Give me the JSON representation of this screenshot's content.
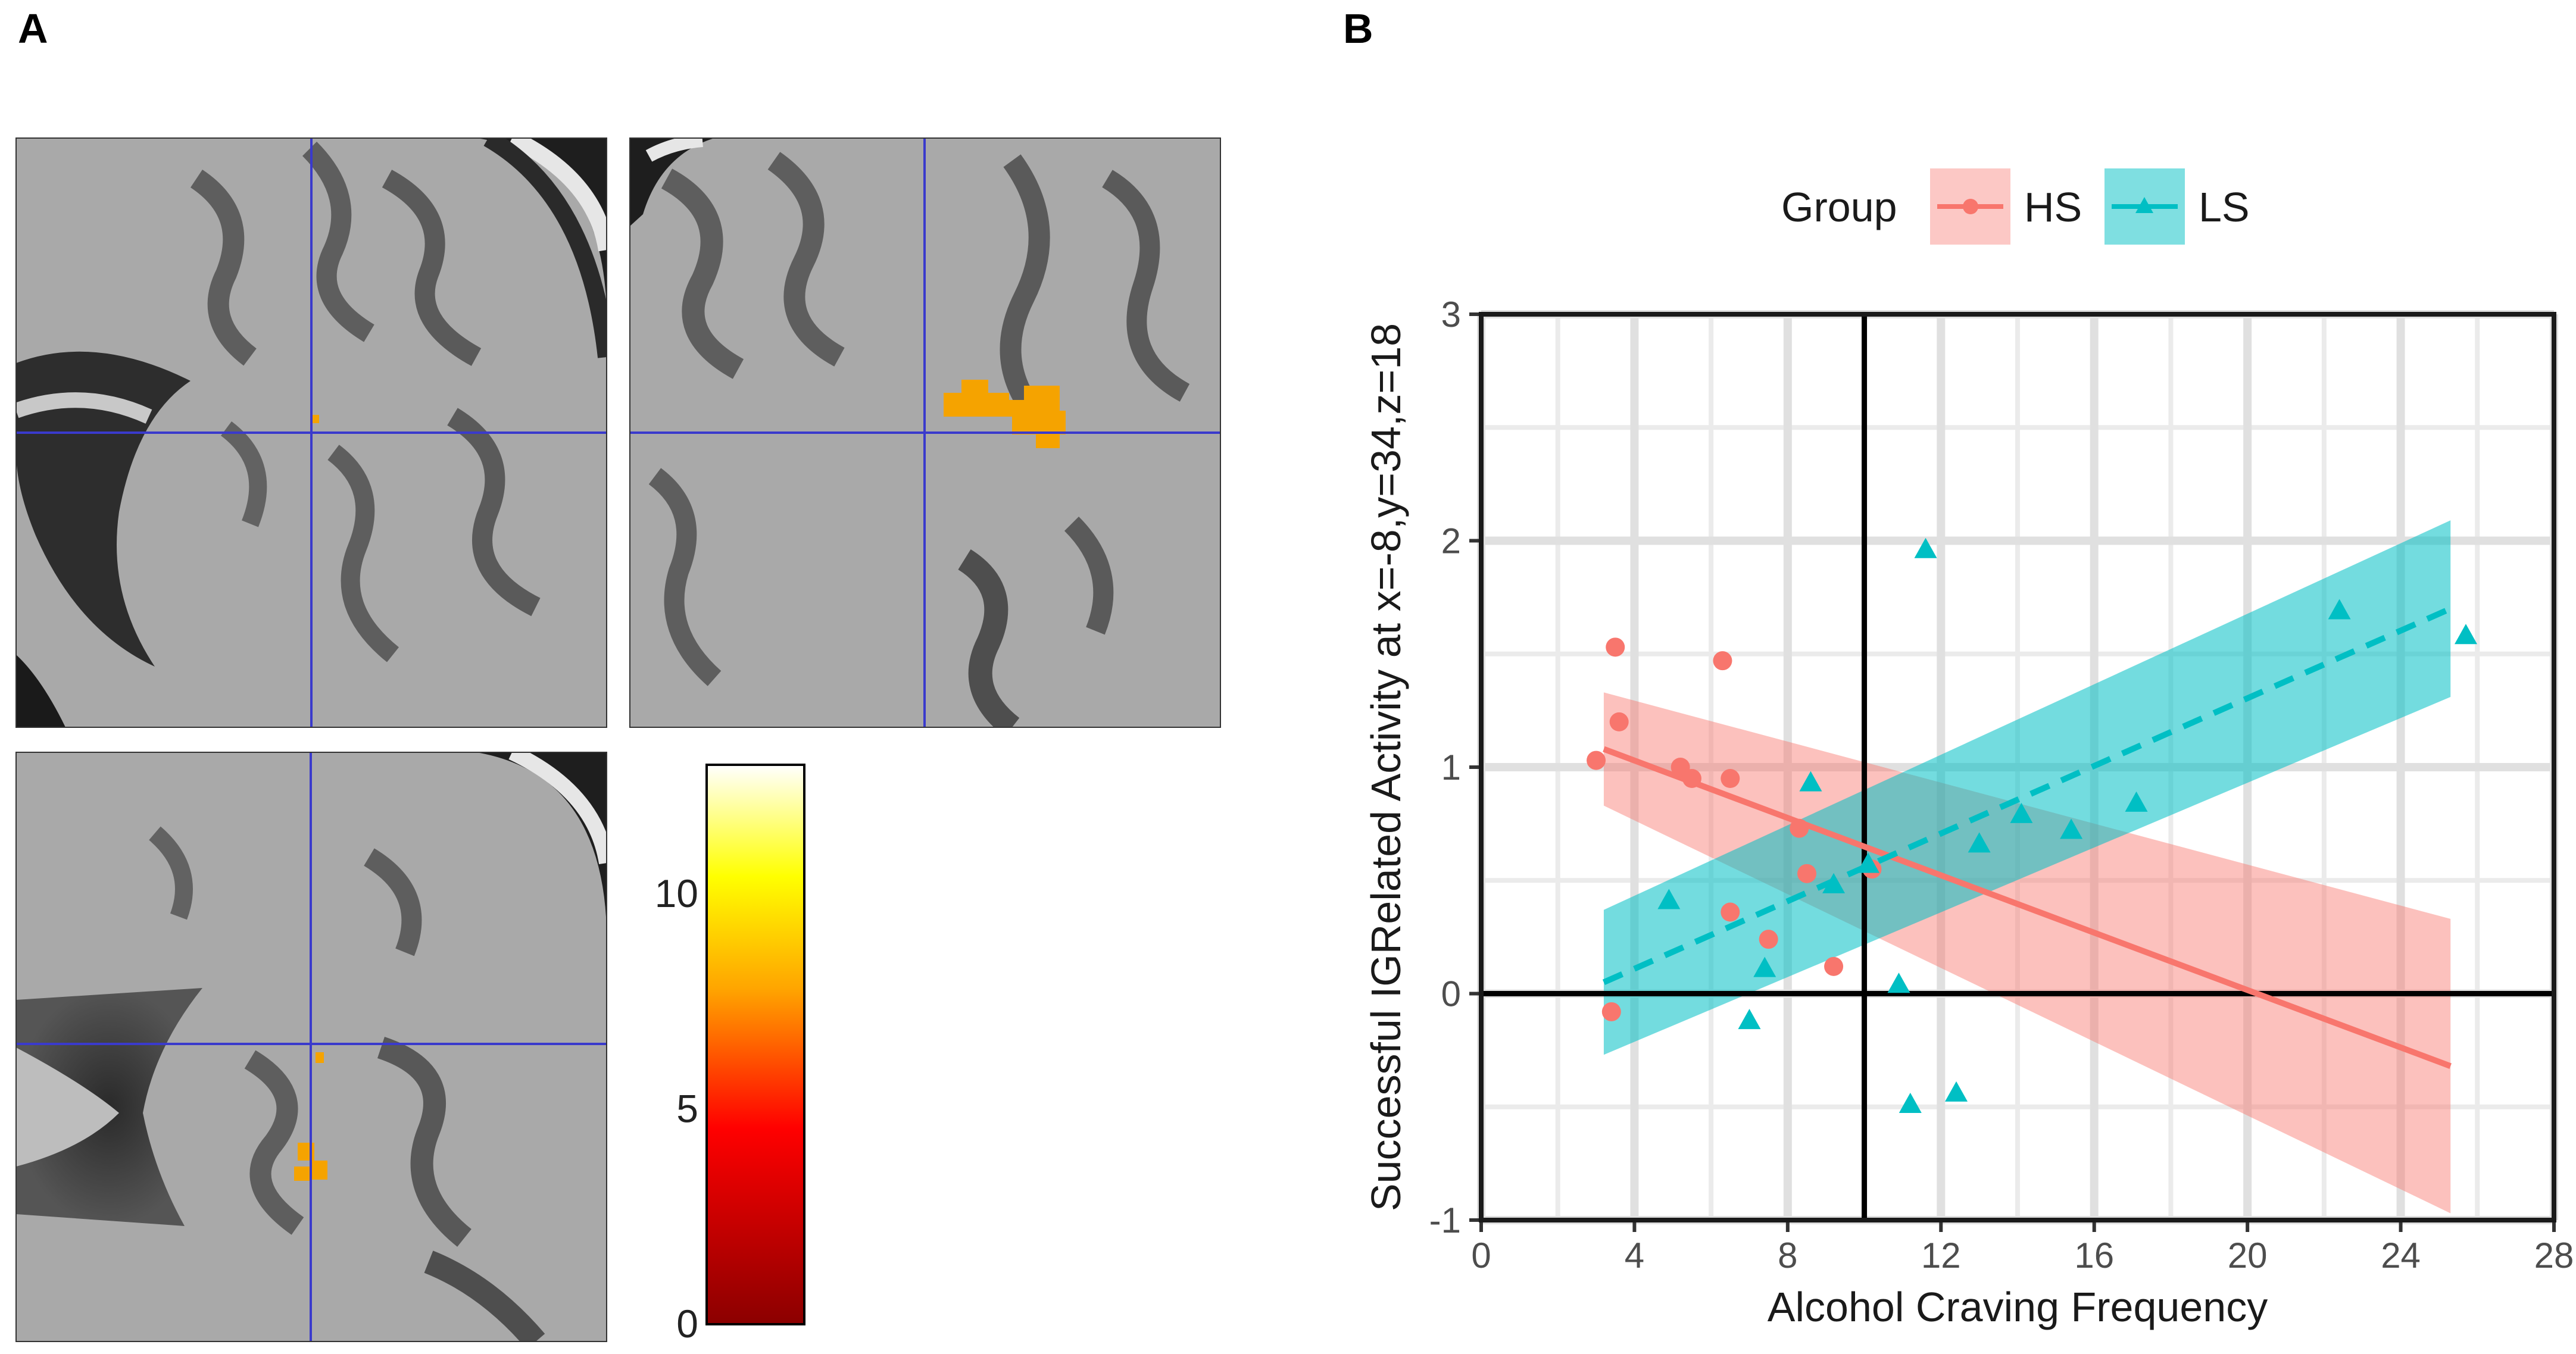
{
  "panel_a": {
    "letter": "A",
    "colorbar": {
      "ticks": [
        {
          "label": "10",
          "value": 10
        },
        {
          "label": "5",
          "value": 5
        },
        {
          "label": "0",
          "value": 0
        }
      ],
      "max": 13,
      "colors": {
        "low": "#8b0000",
        "mid": "#ff0000",
        "upper": "#ffa500",
        "high": "#ffff00",
        "top": "#ffffff"
      }
    },
    "crosshair_color": "#3a3acc",
    "activation_color": "#f5a300"
  },
  "panel_b": {
    "letter": "B",
    "legend": {
      "title": "Group",
      "entries": [
        {
          "label": "HS",
          "color": "#f8766d",
          "marker": "circle"
        },
        {
          "label": "LS",
          "color": "#00bfc4",
          "marker": "triangle"
        }
      ]
    }
  },
  "chart_data": {
    "type": "scatter",
    "xlabel": "Alcohol Craving Frequency",
    "ylabel": "Successful IGRelated Activity at x=-8,y=34,z=18",
    "xlim": [
      0,
      28
    ],
    "ylim": [
      -1,
      3
    ],
    "xticks": [
      0,
      4,
      8,
      12,
      16,
      20,
      24,
      28
    ],
    "yticks": [
      -1,
      0,
      1,
      2,
      3
    ],
    "reference_lines": {
      "x": 10,
      "y": 0
    },
    "grid": true,
    "series": [
      {
        "name": "HS",
        "color": "#f8766d",
        "marker": "circle",
        "points": [
          {
            "x": 3.0,
            "y": 1.03
          },
          {
            "x": 3.5,
            "y": 1.53
          },
          {
            "x": 3.6,
            "y": 1.2
          },
          {
            "x": 5.2,
            "y": 1.0
          },
          {
            "x": 5.5,
            "y": 0.95
          },
          {
            "x": 6.3,
            "y": 1.47
          },
          {
            "x": 6.5,
            "y": 0.95
          },
          {
            "x": 6.5,
            "y": 0.36
          },
          {
            "x": 7.5,
            "y": 0.24
          },
          {
            "x": 8.3,
            "y": 0.73
          },
          {
            "x": 8.5,
            "y": 0.53
          },
          {
            "x": 9.2,
            "y": 0.12
          },
          {
            "x": 10.2,
            "y": 0.55
          },
          {
            "x": 3.4,
            "y": -0.08
          }
        ],
        "fit": {
          "x": [
            3.2,
            25.3
          ],
          "y": [
            1.08,
            -0.32
          ],
          "linestyle": "solid",
          "ci_lower": [
            0.83,
            -0.97
          ],
          "ci_upper": [
            1.33,
            0.33
          ]
        }
      },
      {
        "name": "LS",
        "color": "#00bfc4",
        "marker": "triangle",
        "points": [
          {
            "x": 4.9,
            "y": 0.41
          },
          {
            "x": 7.0,
            "y": -0.12
          },
          {
            "x": 7.4,
            "y": 0.11
          },
          {
            "x": 8.6,
            "y": 0.93
          },
          {
            "x": 9.2,
            "y": 0.48
          },
          {
            "x": 10.1,
            "y": 0.57
          },
          {
            "x": 10.9,
            "y": 0.04
          },
          {
            "x": 11.2,
            "y": -0.49
          },
          {
            "x": 11.6,
            "y": 1.96
          },
          {
            "x": 12.4,
            "y": -0.44
          },
          {
            "x": 13.0,
            "y": 0.66
          },
          {
            "x": 14.1,
            "y": 0.79
          },
          {
            "x": 15.4,
            "y": 0.72
          },
          {
            "x": 17.1,
            "y": 0.84
          },
          {
            "x": 22.4,
            "y": 1.69
          },
          {
            "x": 25.7,
            "y": 1.58
          }
        ],
        "fit": {
          "x": [
            3.2,
            25.3
          ],
          "y": [
            0.05,
            1.7
          ],
          "linestyle": "dashed",
          "ci_lower": [
            -0.27,
            1.31
          ],
          "ci_upper": [
            0.37,
            2.09
          ]
        }
      }
    ]
  }
}
